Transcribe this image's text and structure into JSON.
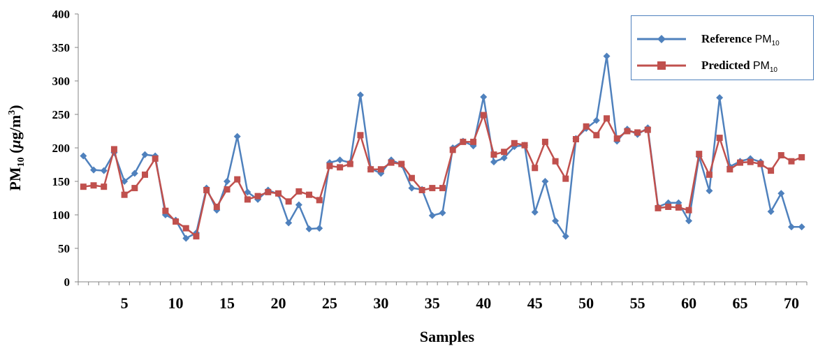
{
  "chart_data": {
    "type": "line",
    "title": "",
    "xlabel": "Samples",
    "ylabel_main": "PM",
    "ylabel_sub": "10",
    "ylabel_unit_open": " (",
    "ylabel_mu": "μ",
    "ylabel_unit_mid": "g/m",
    "ylabel_unit_sup": "3",
    "ylabel_unit_close": ")",
    "ylim": [
      0,
      400
    ],
    "yticks": [
      0,
      50,
      100,
      150,
      200,
      250,
      300,
      350,
      400
    ],
    "xlim": [
      0.5,
      71.5
    ],
    "xticks": [
      5,
      10,
      15,
      20,
      25,
      30,
      35,
      40,
      45,
      50,
      55,
      60,
      65,
      70
    ],
    "grid": false,
    "legend_position": "top-right",
    "series": [
      {
        "label_bold": "Reference",
        "label_unit": "PM",
        "label_sub": "10",
        "color": "#4f81bd",
        "marker": "diamond",
        "values": [
          188,
          167,
          166,
          193,
          150,
          162,
          190,
          188,
          100,
          92,
          65,
          73,
          140,
          107,
          150,
          217,
          134,
          123,
          137,
          131,
          88,
          115,
          79,
          80,
          178,
          182,
          178,
          279,
          169,
          162,
          182,
          175,
          140,
          138,
          99,
          103,
          200,
          210,
          203,
          276,
          179,
          185,
          202,
          204,
          104,
          150,
          91,
          68,
          214,
          229,
          241,
          337,
          210,
          228,
          220,
          230,
          112,
          118,
          118,
          91,
          187,
          136,
          275,
          172,
          180,
          184,
          179,
          105,
          132,
          82,
          82
        ]
      },
      {
        "label_bold": "Predicted",
        "label_unit": "PM",
        "label_sub": "10",
        "color": "#c0504d",
        "marker": "square",
        "values": [
          142,
          144,
          142,
          198,
          130,
          140,
          160,
          184,
          106,
          90,
          80,
          68,
          137,
          112,
          138,
          153,
          123,
          128,
          134,
          132,
          120,
          135,
          130,
          122,
          173,
          171,
          176,
          219,
          168,
          168,
          178,
          176,
          155,
          137,
          140,
          140,
          197,
          209,
          209,
          249,
          190,
          194,
          207,
          204,
          170,
          209,
          180,
          154,
          213,
          232,
          219,
          244,
          214,
          225,
          223,
          227,
          110,
          112,
          111,
          107,
          191,
          160,
          215,
          168,
          178,
          179,
          176,
          166,
          189,
          180,
          186
        ]
      }
    ]
  }
}
